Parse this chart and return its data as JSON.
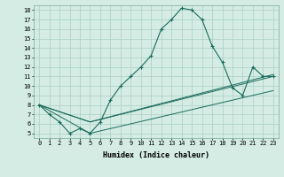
{
  "title": "",
  "xlabel": "Humidex (Indice chaleur)",
  "xlim": [
    -0.5,
    23.5
  ],
  "ylim": [
    4.5,
    18.5
  ],
  "xticks": [
    0,
    1,
    2,
    3,
    4,
    5,
    6,
    7,
    8,
    9,
    10,
    11,
    12,
    13,
    14,
    15,
    16,
    17,
    18,
    19,
    20,
    21,
    22,
    23
  ],
  "yticks": [
    5,
    6,
    7,
    8,
    9,
    10,
    11,
    12,
    13,
    14,
    15,
    16,
    17,
    18
  ],
  "bg_color": "#d4ece4",
  "grid_color": "#aacfc4",
  "line_color": "#1a6b5a",
  "line1_x": [
    0,
    1,
    2,
    3,
    4,
    5,
    6,
    7,
    8,
    9,
    10,
    11,
    12,
    13,
    14,
    15,
    16,
    17,
    18,
    19,
    20,
    21,
    22,
    23
  ],
  "line1_y": [
    8.0,
    7.0,
    6.2,
    5.0,
    5.5,
    5.0,
    6.2,
    8.5,
    10.0,
    11.0,
    12.0,
    13.2,
    16.0,
    17.0,
    18.2,
    18.0,
    17.0,
    14.2,
    12.5,
    9.8,
    9.0,
    12.0,
    11.0,
    11.0
  ],
  "line2_x": [
    0,
    5,
    23
  ],
  "line2_y": [
    8.0,
    6.2,
    11.2
  ],
  "line3_x": [
    0,
    5,
    23
  ],
  "line3_y": [
    8.0,
    6.2,
    11.0
  ],
  "line4_x": [
    0,
    5,
    23
  ],
  "line4_y": [
    8.0,
    5.0,
    9.5
  ]
}
